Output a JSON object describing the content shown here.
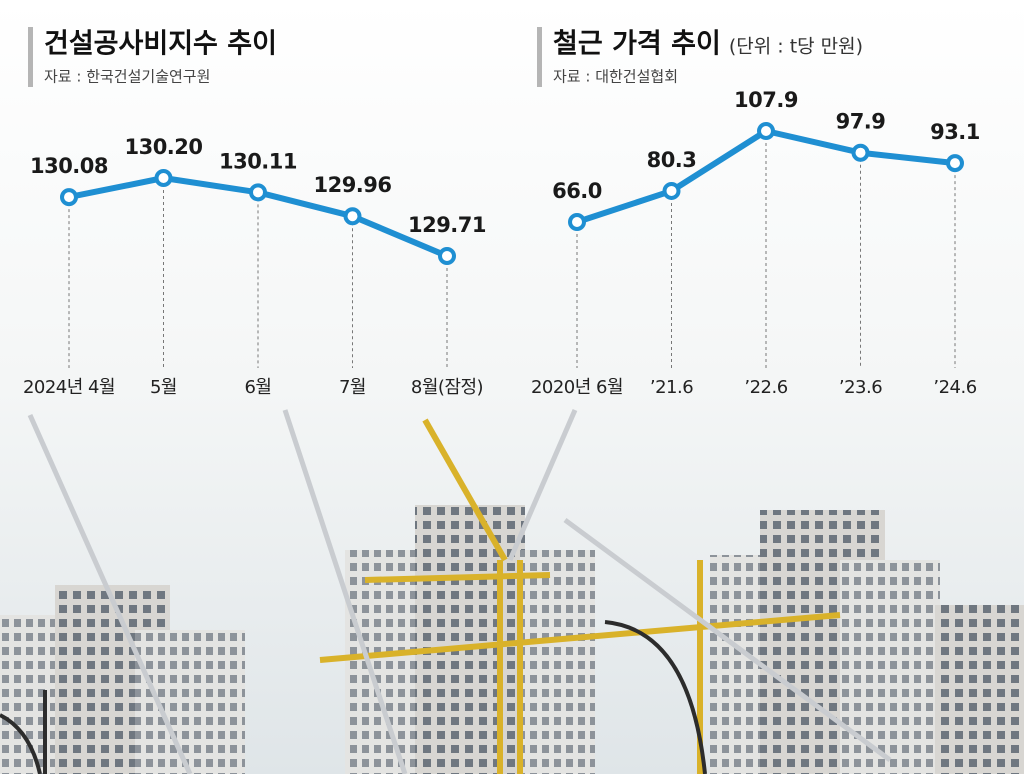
{
  "chart_data": [
    {
      "type": "line",
      "title": "건설공사비지수 추이",
      "source": "자료 : 한국건설기술연구원",
      "categories": [
        "2024년 4월",
        "5월",
        "6월",
        "7월",
        "8월(잠정)"
      ],
      "values": [
        130.08,
        130.2,
        130.11,
        129.96,
        129.71
      ],
      "value_labels": [
        "130.08",
        "130.20",
        "130.11",
        "129.96",
        "129.71"
      ],
      "color": "#1f8fd2"
    },
    {
      "type": "line",
      "title": "철근 가격 추이",
      "subtitle": "(단위 : t당 만원)",
      "source": "자료 : 대한건설협회",
      "categories": [
        "2020년 6월",
        "’21.6",
        "’22.6",
        "’23.6",
        "’24.6"
      ],
      "values": [
        66.0,
        80.3,
        107.9,
        97.9,
        93.1
      ],
      "value_labels": [
        "66.0",
        "80.3",
        "107.9",
        "97.9",
        "93.1"
      ],
      "color": "#1f8fd2"
    }
  ]
}
